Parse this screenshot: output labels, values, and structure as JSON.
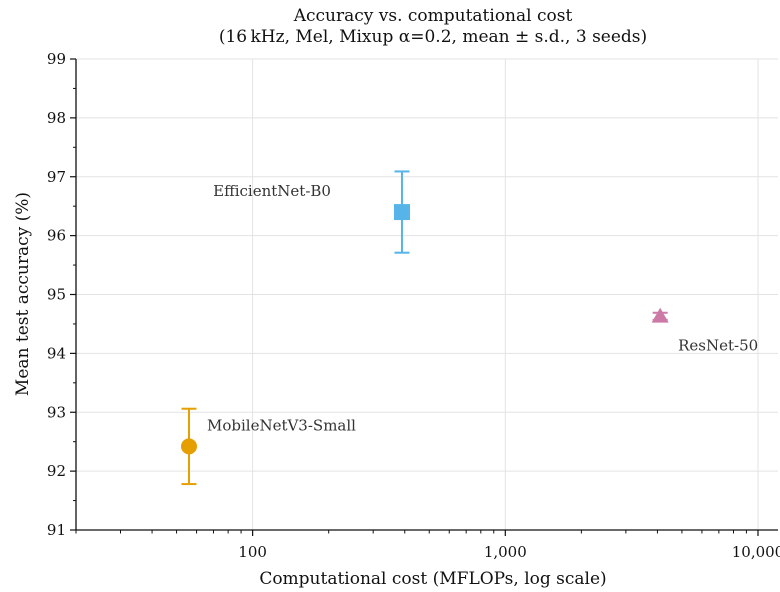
{
  "chart_data": {
    "type": "scatter",
    "title": "Accuracy vs. computational cost",
    "subtitle": "(16 kHz, Mel, Mixup α=0.2, mean ± s.d., 3 seeds)",
    "xlabel": "Computational cost (MFLOPs, log scale)",
    "ylabel": "Mean test accuracy (%)",
    "xscale": "log",
    "xlim": [
      20,
      12000
    ],
    "ylim": [
      91,
      99
    ],
    "xticks": [
      {
        "value": 100,
        "label": "100"
      },
      {
        "value": 1000,
        "label": "1,000"
      },
      {
        "value": 10000,
        "label": "10,000"
      }
    ],
    "yticks": [
      {
        "value": 91,
        "label": "91"
      },
      {
        "value": 92,
        "label": "92"
      },
      {
        "value": 93,
        "label": "93"
      },
      {
        "value": 94,
        "label": "94"
      },
      {
        "value": 95,
        "label": "95"
      },
      {
        "value": 96,
        "label": "96"
      },
      {
        "value": 97,
        "label": "97"
      },
      {
        "value": 98,
        "label": "98"
      },
      {
        "value": 99,
        "label": "99"
      }
    ],
    "grid": true,
    "points": [
      {
        "label": "MobileNetV3-Small",
        "x": 56,
        "y": 92.42,
        "sd": 0.64,
        "marker": "circle",
        "color": "#e69f00",
        "label_side": "right-up"
      },
      {
        "label": "EfficientNet-B0",
        "x": 390,
        "y": 96.4,
        "sd": 0.69,
        "marker": "square",
        "color": "#56b4e9",
        "label_side": "left-up"
      },
      {
        "label": "ResNet-50",
        "x": 4100,
        "y": 94.63,
        "sd": 0.06,
        "marker": "triangle",
        "color": "#cc79a7",
        "label_side": "right-down"
      }
    ]
  }
}
